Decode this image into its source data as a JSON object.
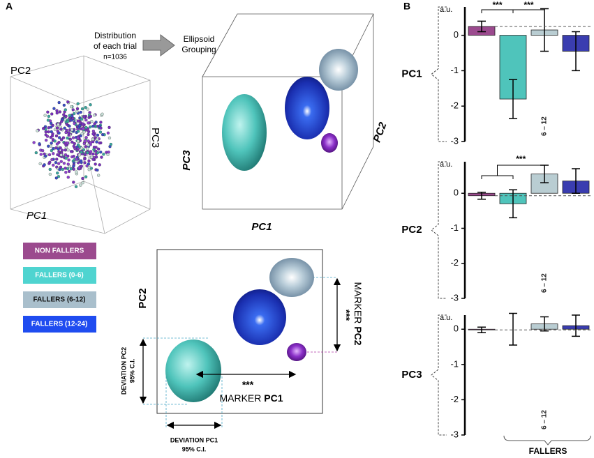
{
  "panel_a": {
    "label": "A",
    "distribution": [
      "Distribution",
      "of each trial"
    ],
    "n": "n=1036",
    "grouping": [
      "Ellipsoid",
      "Grouping"
    ],
    "cube_axes": {
      "x": "PC1",
      "y": "PC2",
      "z": "PC3"
    },
    "box_axes": {
      "x": "PC1",
      "y": "PC3",
      "z": "PC2"
    },
    "legend": [
      "NON FALLERS",
      "FALLERS (0-6)",
      "FALLERS (6-12)",
      "FALLERS (12-24)"
    ],
    "projection": {
      "y_axis": "PC2",
      "marker_pc2": [
        "MARKER ",
        "PC2"
      ],
      "marker_pc2_sig": "***",
      "marker_pc1": [
        "MARKER ",
        "PC1"
      ],
      "marker_pc1_sig": "***",
      "deviation_pc2": [
        "DEVIATION PC2",
        "95% C.I."
      ],
      "deviation_pc1": [
        "DEVIATION PC1",
        "95% C.I."
      ]
    }
  },
  "panel_b": {
    "label": "B",
    "group_label": "FALLERS"
  },
  "chart_data": [
    {
      "type": "bar",
      "title": "PC1",
      "y_label": "a.u.",
      "categories": [
        "NON FALLERS",
        "0 – 6",
        "6 – 12",
        "12 – 24"
      ],
      "colors": [
        "#9b4a8e",
        "#4fc4bb",
        "#b9cdd2",
        "#3a3db0"
      ],
      "values": [
        0.25,
        -1.8,
        0.15,
        -0.45
      ],
      "errors": [
        0.15,
        0.55,
        0.6,
        0.55
      ],
      "ylim": [
        -3,
        0.8
      ],
      "yticks": [
        -3,
        -2,
        -1,
        0
      ],
      "annotations": [
        "***",
        "***"
      ]
    },
    {
      "type": "bar",
      "title": "PC2",
      "y_label": "a.u.",
      "categories": [
        "NON FALLERS",
        "0 – 6",
        "6 – 12",
        "12 – 24"
      ],
      "colors": [
        "#9b4a8e",
        "#4fc4bb",
        "#b9cdd2",
        "#3a3db0"
      ],
      "values": [
        -0.07,
        -0.3,
        0.55,
        0.35
      ],
      "errors": [
        0.1,
        0.4,
        0.25,
        0.35
      ],
      "ylim": [
        -3,
        0.9
      ],
      "yticks": [
        -3,
        -2,
        -1,
        0
      ],
      "annotations": [
        "***"
      ]
    },
    {
      "type": "bar",
      "title": "PC3",
      "y_label": "a.u.",
      "categories": [
        "NON FALLERS",
        "0 – 6",
        "6 – 12",
        "12 – 24"
      ],
      "colors": [
        "#9b4a8e",
        "#4fc4bb",
        "#b9cdd2",
        "#3a3db0"
      ],
      "values": [
        -0.02,
        0,
        0.15,
        0.1
      ],
      "errors": [
        0.08,
        0.45,
        0.2,
        0.3
      ],
      "ylim": [
        -3,
        0.4
      ],
      "yticks": [
        -3,
        -2,
        -1,
        0
      ],
      "annotations": []
    }
  ]
}
